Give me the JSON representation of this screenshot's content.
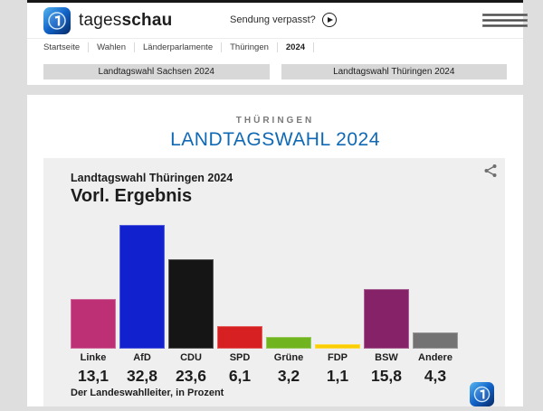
{
  "header": {
    "brand_regular": "tages",
    "brand_bold": "schau",
    "sendung_verpasst_label": "Sendung verpasst?"
  },
  "breadcrumb": {
    "items": [
      "Startseite",
      "Wahlen",
      "Länderparlamente",
      "Thüringen",
      "2024"
    ]
  },
  "tabs": [
    {
      "label": "Landtagswahl Sachsen 2024"
    },
    {
      "label": "Landtagswahl Thüringen 2024"
    }
  ],
  "page": {
    "region_label": "THÜRINGEN",
    "title": "LANDTAGSWAHL 2024"
  },
  "chart": {
    "kicker": "Landtagswahl Thüringen 2024",
    "title": "Vorl. Ergebnis",
    "source": "Der Landeswahlleiter, in Prozent"
  },
  "chart_data": {
    "type": "bar",
    "title": "Landtagswahl Thüringen 2024 – Vorl. Ergebnis",
    "categories": [
      "Linke",
      "AfD",
      "CDU",
      "SPD",
      "Grüne",
      "FDP",
      "BSW",
      "Andere"
    ],
    "values": [
      13.1,
      32.8,
      23.6,
      6.1,
      3.2,
      1.1,
      15.8,
      4.3
    ],
    "value_labels": [
      "13,1",
      "32,8",
      "23,6",
      "6,1",
      "3,2",
      "1,1",
      "15,8",
      "4,3"
    ],
    "colors": [
      "#be3075",
      "#1021cd",
      "#151515",
      "#d62021",
      "#70b51f",
      "#fbcd03",
      "#862368",
      "#737373"
    ],
    "unit": "Prozent",
    "source": "Der Landeswahlleiter, in Prozent",
    "ylim": [
      0,
      35
    ],
    "grid": false,
    "legend": false
  },
  "colors": {
    "accent_blue": "#1069b4",
    "chart_card_bg": "#efefef",
    "tab_bg": "#d8d8d8",
    "page_bg": "#dedede"
  }
}
